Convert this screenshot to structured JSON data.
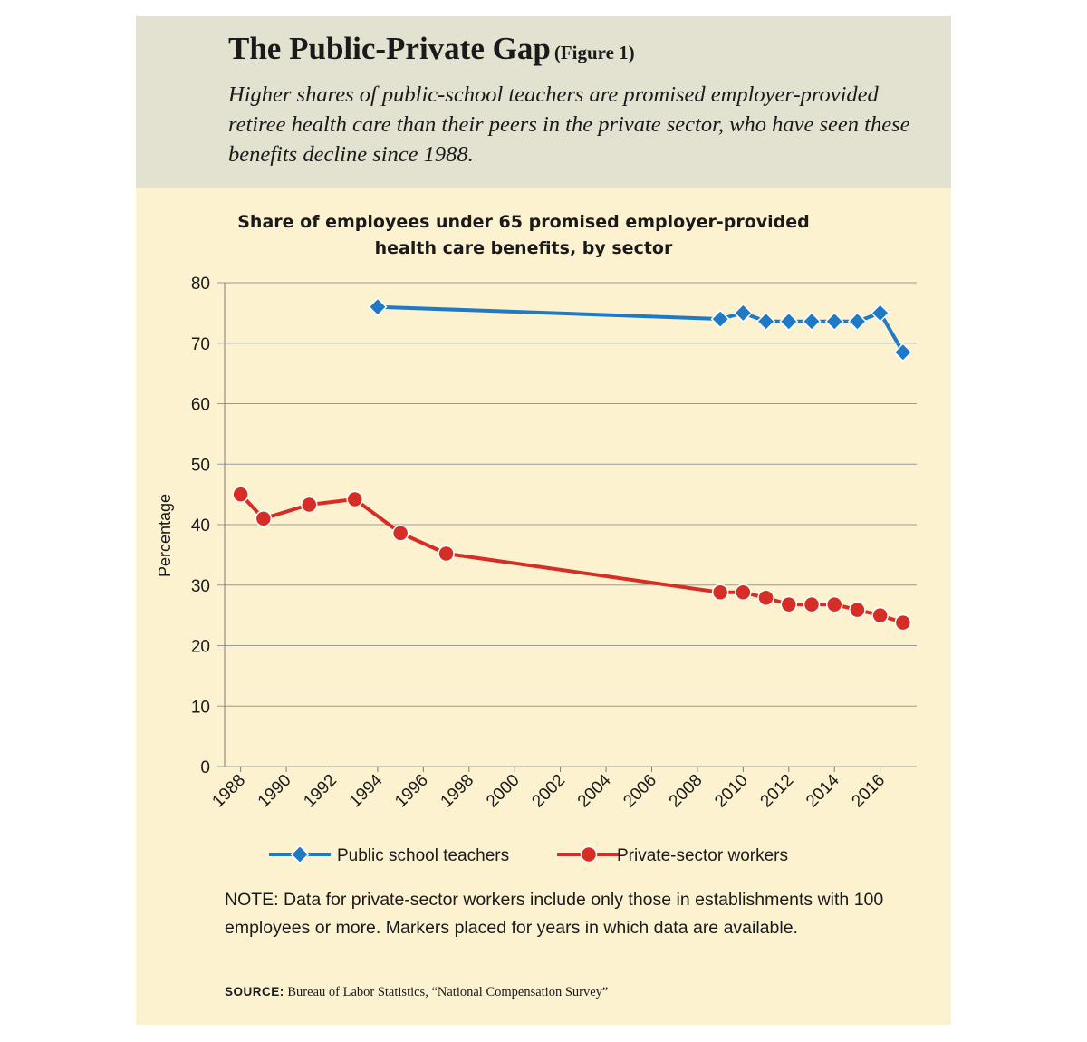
{
  "figure": {
    "title": "The Public-Private Gap",
    "figure_tag": "(Figure 1)",
    "subtitle": "Higher shares of public-school teachers are promised employer-provided retiree health care than their peers in the private sector, who have seen these benefits decline since 1988.",
    "note": "NOTE: Data for private-sector workers include only those in establishments with 100 employees or more. Markers placed for years in which data are available.",
    "source_label": "SOURCE:",
    "source_text": "Bureau of Labor Statistics, “National Compensation Survey”",
    "colors": {
      "header_bg": "#e3e2d0",
      "chart_bg": "#fdf2d0"
    }
  },
  "chart_data": {
    "type": "line",
    "title_line1": "Share of employees under 65 promised employer-provided",
    "title_line2": "health care benefits, by sector",
    "ylabel": "Percentage",
    "xlabel": "",
    "ylim": [
      0,
      80
    ],
    "yticks": [
      0,
      10,
      20,
      30,
      40,
      50,
      60,
      70,
      80
    ],
    "xlim": [
      1987.3,
      2017.6
    ],
    "xticks": [
      1988,
      1990,
      1992,
      1994,
      1996,
      1998,
      2000,
      2002,
      2004,
      2006,
      2008,
      2010,
      2012,
      2014,
      2016
    ],
    "grid": "horizontal",
    "legend_position": "bottom",
    "series": [
      {
        "name": "Public school teachers",
        "color": "#1f7ac6",
        "marker": "diamond",
        "x": [
          1994,
          2009,
          2010,
          2011,
          2012,
          2013,
          2014,
          2015,
          2016,
          2017
        ],
        "y": [
          76,
          74,
          75,
          73.6,
          73.6,
          73.6,
          73.6,
          73.6,
          75,
          68.5
        ]
      },
      {
        "name": "Private-sector workers",
        "color": "#d42e26",
        "marker": "circle",
        "x": [
          1988,
          1989,
          1991,
          1993,
          1995,
          1997,
          2009,
          2010,
          2011,
          2012,
          2013,
          2014,
          2015,
          2016,
          2017
        ],
        "y": [
          45,
          41,
          43.3,
          44.2,
          38.6,
          35.2,
          28.8,
          28.8,
          27.9,
          26.8,
          26.8,
          26.8,
          25.9,
          25.0,
          23.8
        ]
      }
    ]
  }
}
